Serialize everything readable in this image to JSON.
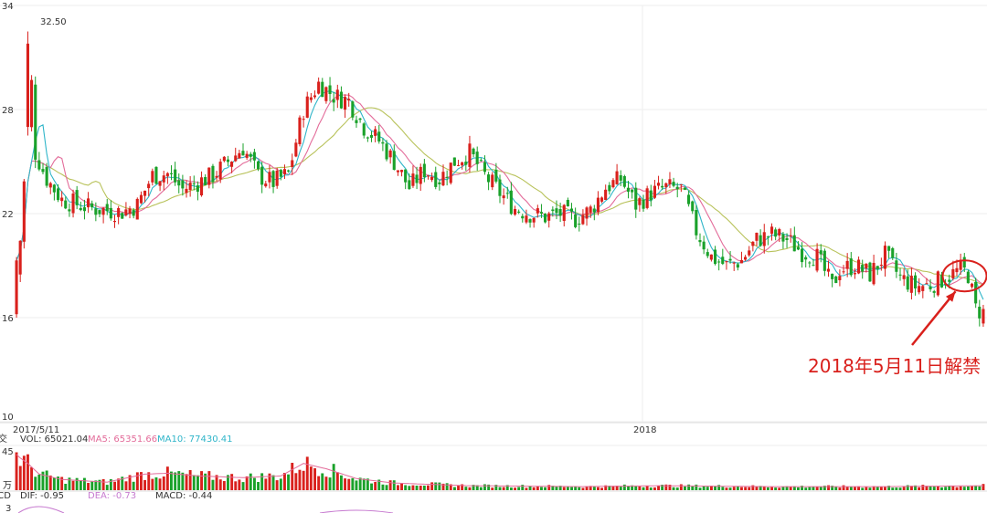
{
  "colors": {
    "up": "#d9201c",
    "down": "#1aa12a",
    "ma5": "#2fb5c9",
    "ma10": "#e36c9a",
    "ma20": "#b8c25a",
    "annotation": "#d9201c",
    "grid": "#eeeeee"
  },
  "chart_data": {
    "type": "candlestick",
    "price_axis": {
      "ticks": [
        "34",
        "28",
        "22",
        "16",
        "10"
      ],
      "ylim": [
        10,
        34
      ]
    },
    "x_labels": [
      "2017/5/11",
      "2018"
    ],
    "peak_label": "32.50",
    "price_path": [
      [
        0,
        18.5
      ],
      [
        1,
        20.5
      ],
      [
        3,
        27.0
      ],
      [
        4,
        29.5
      ],
      [
        5,
        25.5
      ],
      [
        8,
        24.0
      ],
      [
        12,
        22.8
      ],
      [
        20,
        22.3
      ],
      [
        28,
        22.1
      ],
      [
        32,
        22.5
      ],
      [
        36,
        24.2
      ],
      [
        40,
        24.3
      ],
      [
        44,
        23.4
      ],
      [
        48,
        23.8
      ],
      [
        52,
        24.2
      ],
      [
        56,
        25.0
      ],
      [
        60,
        25.8
      ],
      [
        64,
        24.2
      ],
      [
        68,
        23.8
      ],
      [
        72,
        24.3
      ],
      [
        76,
        28.0
      ],
      [
        80,
        29.5
      ],
      [
        84,
        28.8
      ],
      [
        88,
        28.5
      ],
      [
        92,
        27.0
      ],
      [
        96,
        26.2
      ],
      [
        100,
        25.0
      ],
      [
        104,
        23.5
      ],
      [
        108,
        24.5
      ],
      [
        112,
        24.0
      ],
      [
        116,
        25.0
      ],
      [
        120,
        25.5
      ],
      [
        124,
        24.2
      ],
      [
        128,
        23.2
      ],
      [
        132,
        22.3
      ],
      [
        136,
        22.0
      ],
      [
        140,
        21.8
      ],
      [
        144,
        22.0
      ],
      [
        148,
        21.7
      ],
      [
        152,
        22.2
      ],
      [
        156,
        23.5
      ],
      [
        160,
        24.0
      ],
      [
        164,
        22.5
      ],
      [
        168,
        23.2
      ],
      [
        172,
        23.5
      ],
      [
        176,
        23.4
      ],
      [
        180,
        21.0
      ],
      [
        184,
        19.5
      ],
      [
        188,
        19.0
      ],
      [
        192,
        19.3
      ],
      [
        196,
        20.5
      ],
      [
        200,
        20.8
      ],
      [
        204,
        20.5
      ],
      [
        208,
        19.8
      ],
      [
        212,
        19.5
      ],
      [
        216,
        17.8
      ],
      [
        218,
        18.8
      ],
      [
        222,
        19.0
      ],
      [
        226,
        18.5
      ],
      [
        230,
        19.6
      ],
      [
        234,
        18.3
      ],
      [
        238,
        17.8
      ],
      [
        242,
        17.9
      ],
      [
        246,
        18.3
      ],
      [
        250,
        18.8
      ],
      [
        252,
        18.5
      ],
      [
        254,
        16.5
      ],
      [
        256,
        16.3
      ]
    ],
    "n_bars": 257,
    "seed": 7,
    "volume_axis": {
      "ticks": [
        "45"
      ],
      "unit": "万"
    },
    "volume_path": [
      [
        0,
        40
      ],
      [
        1,
        36
      ],
      [
        3,
        30
      ],
      [
        6,
        18
      ],
      [
        12,
        12
      ],
      [
        24,
        9
      ],
      [
        34,
        18
      ],
      [
        40,
        19
      ],
      [
        48,
        16
      ],
      [
        60,
        14
      ],
      [
        70,
        16
      ],
      [
        76,
        30
      ],
      [
        82,
        24
      ],
      [
        90,
        13
      ],
      [
        100,
        8
      ],
      [
        120,
        5
      ],
      [
        150,
        4
      ],
      [
        170,
        5
      ],
      [
        200,
        4
      ],
      [
        230,
        4
      ],
      [
        256,
        5
      ]
    ],
    "macd_axis": {
      "ticks": [
        "3"
      ]
    },
    "legend": {
      "vol_prefix": "成交",
      "vol": "VOL: 65021.04",
      "ma5": "MA5: 65351.66",
      "ma10": "MA10: 77430.41",
      "macd_prefix": "MACD",
      "dif": "DIF: -0.95",
      "dea": "DEA: -0.73",
      "macd": "MACD: -0.44"
    },
    "annotation": {
      "text": "2018年5月11日解禁",
      "target_bar": 253,
      "target_price": 18.2
    }
  }
}
